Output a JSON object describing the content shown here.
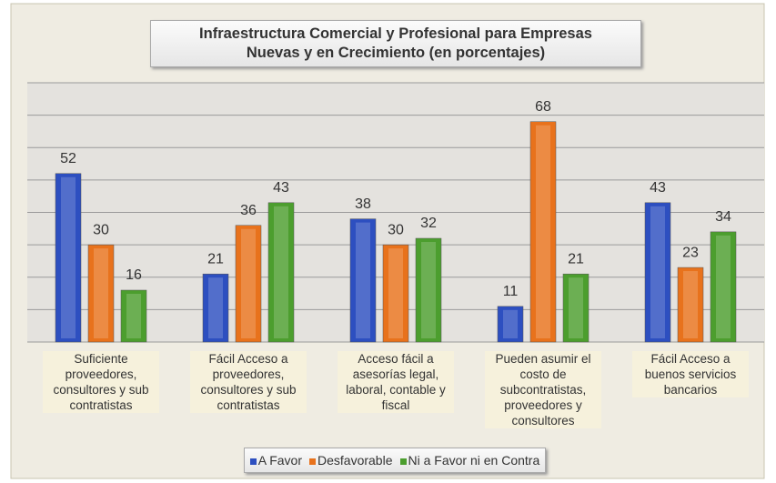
{
  "chart_data": {
    "type": "bar",
    "title": "Infraestructura Comercial y Profesional para Empresas Nuevas y en Crecimiento (en porcentajes)",
    "categories": [
      "Suficiente proveedores, consultores y sub contratistas",
      "Fácil Acceso a proveedores, consultores y sub contratistas",
      "Acceso fácil a asesorías legal, laboral, contable y fiscal",
      "Pueden asumir el costo de subcontratistas, proveedores y consultores",
      "Fácil Acceso a buenos servicios bancarios"
    ],
    "series": [
      {
        "name": "A Favor",
        "color": "#2d4fc0",
        "values": [
          52,
          21,
          38,
          11,
          43
        ]
      },
      {
        "name": "Desfavorable",
        "color": "#e8721c",
        "values": [
          30,
          36,
          30,
          68,
          23
        ]
      },
      {
        "name": "Ni a Favor ni en Contra",
        "color": "#4c9e2e",
        "values": [
          16,
          43,
          32,
          21,
          34
        ]
      }
    ],
    "ylim": [
      0,
      80
    ],
    "yticks": [
      0,
      10,
      20,
      30,
      40,
      50,
      60,
      70,
      80
    ],
    "grid": true,
    "legend": "bottom"
  }
}
